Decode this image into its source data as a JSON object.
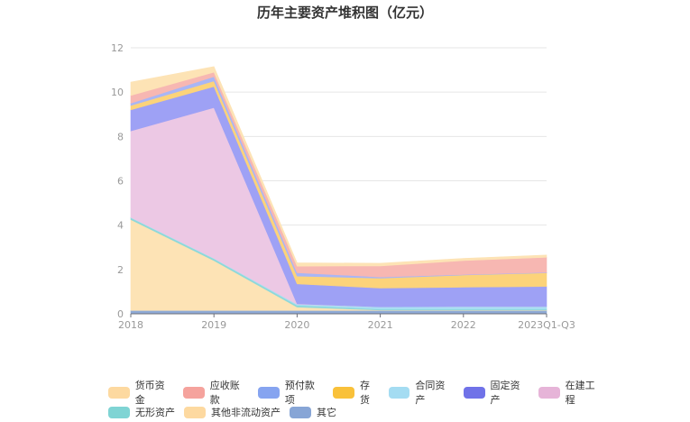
{
  "title": "历年主要资产堆积图（亿元）",
  "chart_data": {
    "type": "area",
    "stacked": true,
    "title": "历年主要资产堆积图（亿元）",
    "xlabel": "",
    "ylabel": "",
    "ylim": [
      0,
      12
    ],
    "yticks": [
      0,
      2,
      4,
      6,
      8,
      10,
      12
    ],
    "grid": true,
    "legend_position": "bottom",
    "categories": [
      "2018",
      "2019",
      "2020",
      "2021",
      "2022",
      "2023Q1-Q3"
    ],
    "series": [
      {
        "name": "其它",
        "color": "#8eaad6",
        "values": [
          0.15,
          0.15,
          0.15,
          0.15,
          0.15,
          0.15
        ]
      },
      {
        "name": "其他非流动资产",
        "color": "#fde3b5",
        "values": [
          4.1,
          2.25,
          0.15,
          0.02,
          0.02,
          0.02
        ]
      },
      {
        "name": "无形资产",
        "color": "#8ed8d8",
        "values": [
          0.08,
          0.08,
          0.08,
          0.04,
          0.04,
          0.04
        ]
      },
      {
        "name": "合同资产",
        "color": "#a8def2",
        "values": [
          0.02,
          0.02,
          0.05,
          0.1,
          0.12,
          0.12
        ]
      },
      {
        "name": "在建工程",
        "color": "#ecc8e4",
        "values": [
          3.9,
          6.8,
          0.02,
          0.0,
          0.0,
          0.0
        ]
      },
      {
        "name": "固定资产",
        "color": "#9ea1f5",
        "values": [
          0.95,
          0.95,
          0.9,
          0.85,
          0.87,
          0.9
        ]
      },
      {
        "name": "存货",
        "color": "#fcd37a",
        "values": [
          0.2,
          0.25,
          0.35,
          0.45,
          0.55,
          0.62
        ]
      },
      {
        "name": "预付款项",
        "color": "#a9b6f5",
        "values": [
          0.1,
          0.2,
          0.15,
          0.05,
          0.02,
          0.02
        ]
      },
      {
        "name": "应收账款",
        "color": "#f7b7b2",
        "values": [
          0.35,
          0.2,
          0.3,
          0.5,
          0.63,
          0.68
        ]
      },
      {
        "name": "货币资金",
        "color": "#fde3b5",
        "values": [
          0.6,
          0.25,
          0.15,
          0.12,
          0.1,
          0.1
        ]
      }
    ]
  },
  "legend": {
    "row1": [
      {
        "label": "货币资金",
        "color": "#fdd9a0"
      },
      {
        "label": "应收账款",
        "color": "#f5a39d"
      },
      {
        "label": "预付款项",
        "color": "#86a4f0"
      },
      {
        "label": "存货",
        "color": "#f9c13a"
      },
      {
        "label": "合同资产",
        "color": "#a4dcf2"
      },
      {
        "label": "固定资产",
        "color": "#7072e8"
      },
      {
        "label": "在建工程",
        "color": "#e6b4d8"
      }
    ],
    "row2": [
      {
        "label": "无形资产",
        "color": "#7fd4d4"
      },
      {
        "label": "其他非流动资产",
        "color": "#fdd9a0"
      },
      {
        "label": "其它",
        "color": "#87a5d6"
      }
    ]
  }
}
